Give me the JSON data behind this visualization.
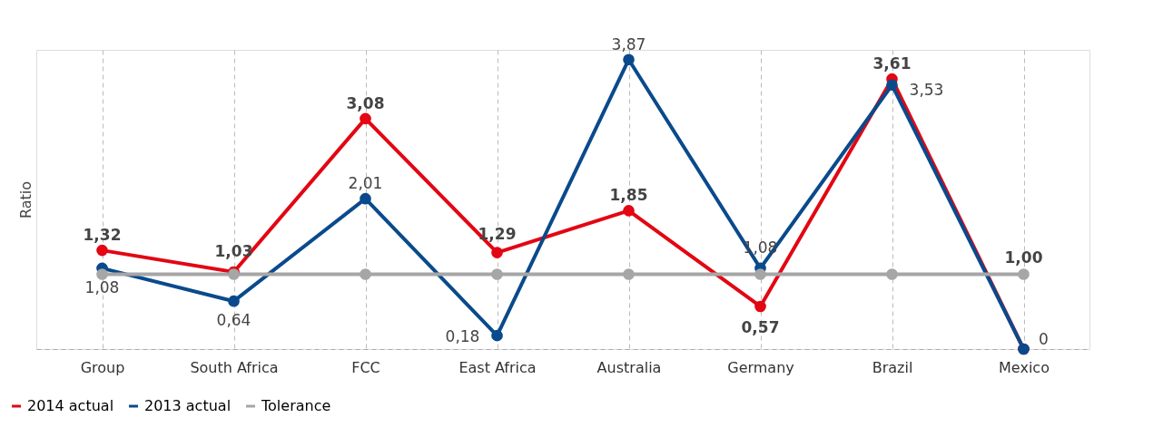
{
  "chart_data": {
    "type": "line",
    "ylabel": "Ratio",
    "categories": [
      "Group",
      "South Africa",
      "FCC",
      "East Africa",
      "Australia",
      "Germany",
      "Brazil",
      "Mexico"
    ],
    "ylim": [
      0,
      4
    ],
    "grid": "x",
    "legend": "bottom left",
    "tick_labels": "x",
    "marker": "circle",
    "line_style": "solid",
    "series": [
      {
        "name": "2014 actual",
        "color": "#e30613",
        "values": [
          1.32,
          1.03,
          3.08,
          1.29,
          1.85,
          0.57,
          3.61,
          0
        ],
        "value_labels": [
          "1,32",
          "1,03",
          "3,08",
          "1,29",
          "1,85",
          "0,57",
          "3,61",
          null
        ]
      },
      {
        "name": "2013 actual",
        "color": "#0a4a8c",
        "values": [
          1.08,
          0.64,
          2.01,
          0.18,
          3.87,
          1.08,
          3.53,
          0
        ],
        "value_labels": [
          "1,08",
          "0,64",
          "2,01",
          "0,18",
          "3,87",
          "1,08",
          "3,53",
          "0"
        ]
      },
      {
        "name": "Tolerance",
        "color": "#a6a6a6",
        "values": [
          1,
          1,
          1,
          1,
          1,
          1,
          1,
          1
        ],
        "value_labels": [
          null,
          null,
          null,
          null,
          null,
          null,
          null,
          "1,00"
        ]
      }
    ]
  }
}
